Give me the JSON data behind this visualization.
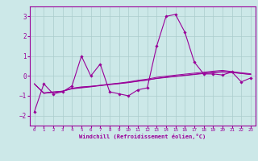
{
  "x": [
    0,
    1,
    2,
    3,
    4,
    5,
    6,
    7,
    8,
    9,
    10,
    11,
    12,
    13,
    14,
    15,
    16,
    17,
    18,
    19,
    20,
    21,
    22,
    23
  ],
  "main_line": [
    -1.8,
    -0.4,
    -0.9,
    -0.8,
    -0.5,
    1.0,
    0.0,
    0.6,
    -0.8,
    -0.9,
    -1.0,
    -0.7,
    -0.6,
    1.5,
    3.0,
    3.1,
    2.2,
    0.7,
    0.1,
    0.1,
    0.05,
    0.2,
    -0.3,
    -0.1
  ],
  "line2": [
    -0.4,
    -0.85,
    -0.8,
    -0.78,
    -0.62,
    -0.55,
    -0.52,
    -0.48,
    -0.42,
    -0.38,
    -0.32,
    -0.26,
    -0.2,
    -0.13,
    -0.08,
    -0.03,
    0.02,
    0.07,
    0.12,
    0.16,
    0.19,
    0.17,
    0.12,
    0.07
  ],
  "line3": [
    -0.4,
    -0.88,
    -0.82,
    -0.76,
    -0.63,
    -0.58,
    -0.53,
    -0.47,
    -0.41,
    -0.36,
    -0.3,
    -0.22,
    -0.16,
    -0.07,
    -0.01,
    0.04,
    0.09,
    0.14,
    0.19,
    0.24,
    0.28,
    0.22,
    0.16,
    0.11
  ],
  "line4": [
    -0.4,
    -0.87,
    -0.83,
    -0.77,
    -0.65,
    -0.6,
    -0.55,
    -0.49,
    -0.44,
    -0.39,
    -0.34,
    -0.27,
    -0.21,
    -0.12,
    -0.06,
    -0.01,
    0.04,
    0.09,
    0.14,
    0.19,
    0.23,
    0.19,
    0.13,
    0.08
  ],
  "line_color": "#990099",
  "bg_color": "#cce8e8",
  "grid_color": "#aacccc",
  "xlabel": "Windchill (Refroidissement éolien,°C)",
  "ylim": [
    -2.5,
    3.5
  ],
  "xlim": [
    -0.5,
    23.5
  ],
  "yticks": [
    -2,
    -1,
    0,
    1,
    2,
    3
  ],
  "xticks": [
    0,
    1,
    2,
    3,
    4,
    5,
    6,
    7,
    8,
    9,
    10,
    11,
    12,
    13,
    14,
    15,
    16,
    17,
    18,
    19,
    20,
    21,
    22,
    23
  ]
}
